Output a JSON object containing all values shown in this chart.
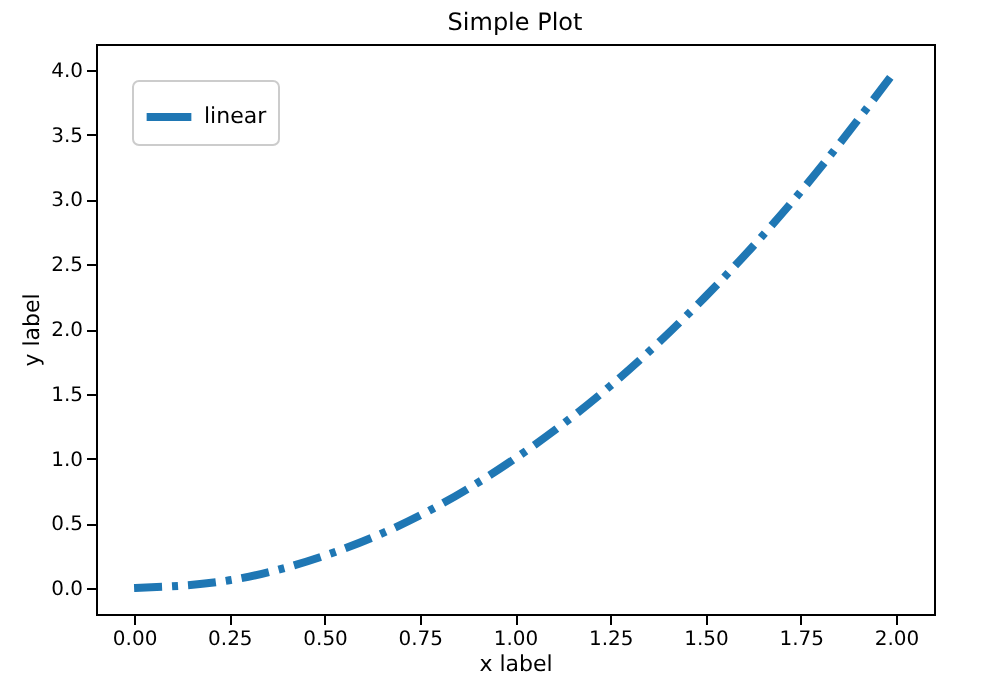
{
  "chart_data": {
    "type": "line",
    "title": "Simple Plot",
    "xlabel": "x label",
    "ylabel": "y label",
    "x": [
      0,
      0.25,
      0.5,
      0.75,
      1.0,
      1.25,
      1.5,
      1.75,
      2.0
    ],
    "series": [
      {
        "name": "linear",
        "color": "#1f77b4",
        "values": [
          0,
          0.06,
          0.25,
          0.56,
          1.0,
          1.56,
          2.25,
          3.06,
          4.0
        ]
      }
    ],
    "xlim": [
      -0.1,
      2.1
    ],
    "xticks": [
      {
        "value": 0,
        "label": "0.00"
      },
      0.25,
      {
        "value": 0.5,
        "label": "0.50"
      },
      0.75,
      {
        "value": 1,
        "label": "1.00"
      },
      1.25,
      {
        "value": 1.5,
        "label": "1.50"
      },
      1.75,
      {
        "value": 2,
        "label": "2.00"
      }
    ],
    "ylim": [
      -0.2,
      4.2
    ],
    "yticks": [
      {
        "value": 0,
        "label": "0.0"
      },
      0.5,
      {
        "value": 1,
        "label": "1.0"
      },
      1.5,
      {
        "value": 2,
        "label": "2.0"
      },
      2.5,
      {
        "value": 3,
        "label": "3.0"
      },
      3.5,
      {
        "value": 4,
        "label": "4.0"
      }
    ],
    "legend": "top left",
    "line_style": "dashed",
    "marker": "none",
    "grid": false
  }
}
